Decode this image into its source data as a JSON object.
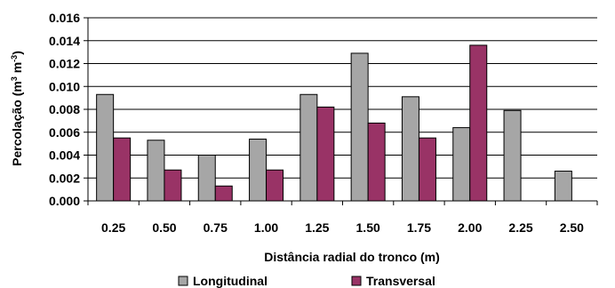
{
  "chart_data": {
    "type": "bar",
    "title": "",
    "xlabel": "Distância radial do tronco (m)",
    "ylabel_main": "Percolação (m",
    "ylabel_sup1": "3",
    "ylabel_mid": " m",
    "ylabel_sup2": "-3",
    "ylabel_end": ")",
    "categories": [
      "0.25",
      "0.50",
      "0.75",
      "1.00",
      "1.25",
      "1.50",
      "1.75",
      "2.00",
      "2.25",
      "2.50"
    ],
    "series": [
      {
        "name": "Longitudinal",
        "color": "#a6a6a6",
        "values": [
          0.0093,
          0.0053,
          0.004,
          0.0054,
          0.0093,
          0.0129,
          0.0091,
          0.0064,
          0.0079,
          0.0026
        ]
      },
      {
        "name": "Transversal",
        "color": "#993366",
        "values": [
          0.0055,
          0.0027,
          0.0013,
          0.0027,
          0.0082,
          0.0068,
          0.0055,
          0.0136,
          0.0,
          0.0
        ]
      }
    ],
    "yticks": [
      "0.000",
      "0.002",
      "0.004",
      "0.006",
      "0.008",
      "0.010",
      "0.012",
      "0.014",
      "0.016"
    ],
    "ylim": [
      0,
      0.016
    ],
    "grid": true,
    "legend_position": "bottom"
  }
}
